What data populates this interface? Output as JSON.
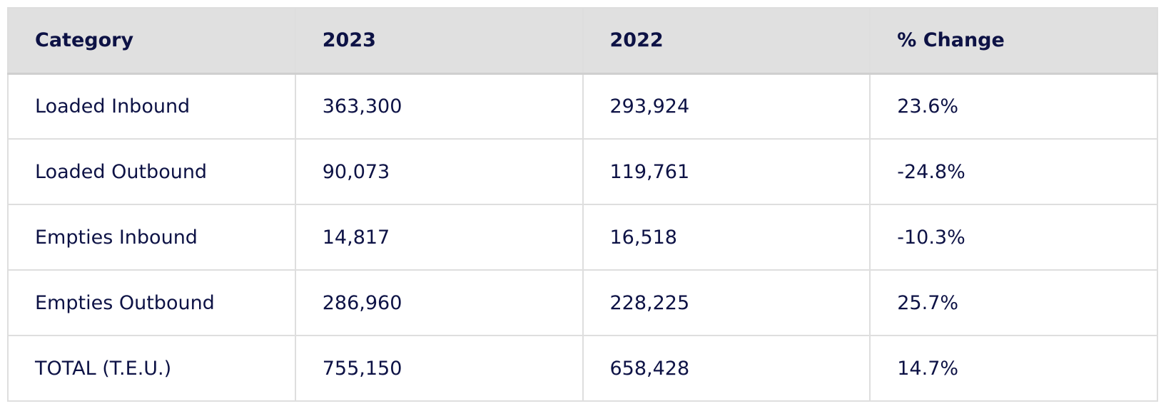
{
  "table": {
    "header": [
      "Category",
      "2023",
      "2022",
      "% Change"
    ],
    "rows": [
      [
        "Loaded Inbound",
        "363,300",
        "293,924",
        "23.6%"
      ],
      [
        "Loaded Outbound",
        "90,073",
        "119,761",
        "-24.8%"
      ],
      [
        "Empties Inbound",
        "14,817",
        "16,518",
        "-10.3%"
      ],
      [
        "Empties Outbound",
        "286,960",
        "228,225",
        "25.7%"
      ],
      [
        "TOTAL (T.E.U.)",
        "755,150",
        "658,428",
        "14.7%"
      ]
    ]
  }
}
